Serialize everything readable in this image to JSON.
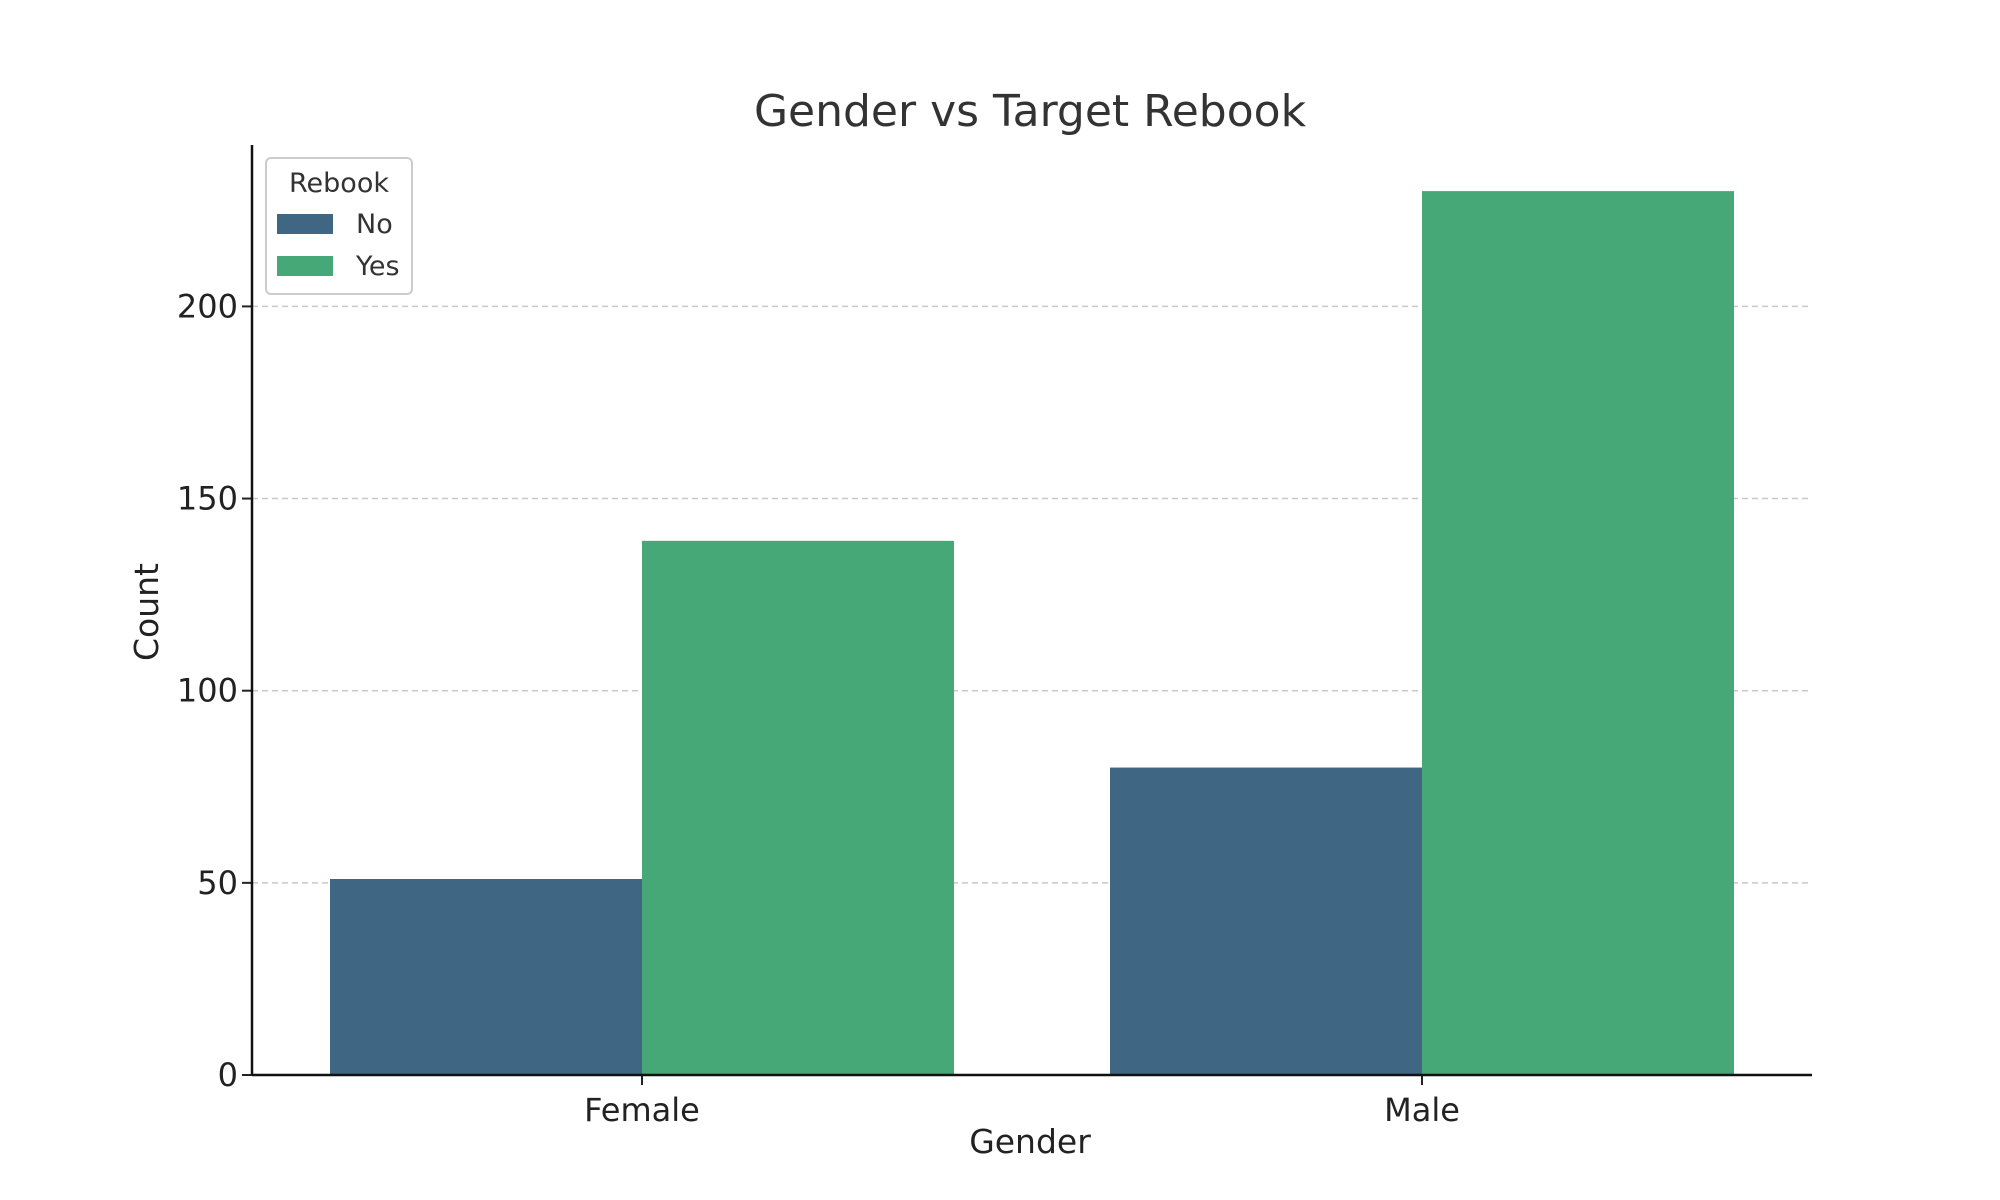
{
  "chart_data": {
    "type": "bar",
    "title": "Gender vs Target Rebook",
    "xlabel": "Gender",
    "ylabel": "Count",
    "categories": [
      "Female",
      "Male"
    ],
    "series": [
      {
        "name": "No",
        "values": [
          51,
          80
        ],
        "color": "#3f6682"
      },
      {
        "name": "Yes",
        "values": [
          139,
          230
        ],
        "color": "#46a777"
      }
    ],
    "ylim": [
      0,
      242
    ],
    "yticks": [
      0,
      50,
      100,
      150,
      200
    ],
    "grid": true,
    "legend": {
      "title": "Rebook",
      "placement": "top-left"
    }
  }
}
